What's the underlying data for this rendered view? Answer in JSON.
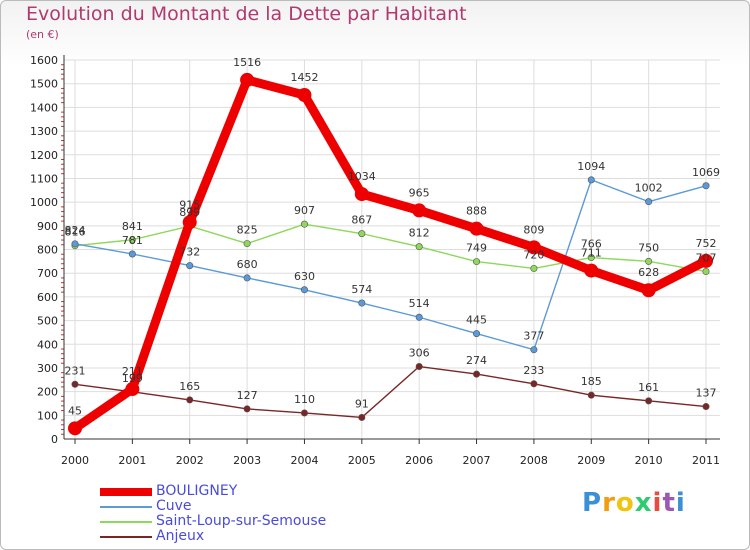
{
  "title": "Evolution du Montant de la Dette par Habitant",
  "subtitle": "(en €)",
  "logo": {
    "letters": [
      "P",
      "r",
      "o",
      "x",
      "i",
      "t",
      "i"
    ],
    "colors": [
      "#3b8fd6",
      "#f39c12",
      "#f1c40f",
      "#2ecc71",
      "#e74c3c",
      "#9b59b6",
      "#3b8fd6"
    ]
  },
  "chart_data": {
    "type": "line",
    "x": [
      "2000",
      "2001",
      "2002",
      "2003",
      "2004",
      "2005",
      "2006",
      "2007",
      "2008",
      "2009",
      "2010",
      "2011"
    ],
    "ylim": [
      0,
      1600
    ],
    "yticks": [
      "0",
      "100",
      "200",
      "300",
      "400",
      "500",
      "600",
      "700",
      "800",
      "900",
      "1000",
      "1100",
      "1200",
      "1300",
      "1400",
      "1500",
      "1600"
    ],
    "grid": true,
    "legend_position": "bottom-left",
    "series": [
      {
        "name": "BOULIGNEY",
        "color": "#ee0000",
        "values": [
          45,
          211,
          915,
          1516,
          1452,
          1034,
          965,
          888,
          809,
          711,
          628,
          752
        ],
        "labels": [
          "45",
          "211",
          "915",
          "1516",
          "1452",
          "1034",
          "965",
          "888",
          "809",
          "711",
          "628",
          "752"
        ]
      },
      {
        "name": "Cuve",
        "color": "#5a9ad8",
        "values": [
          824,
          781,
          732,
          680,
          630,
          574,
          514,
          445,
          377,
          1094,
          1002,
          1069
        ],
        "labels": [
          "824",
          "781",
          "732",
          "680",
          "630",
          "574",
          "514",
          "445",
          "377",
          "1094",
          "1002",
          "1069"
        ]
      },
      {
        "name": "Saint-Loup-sur-Semouse",
        "color": "#8ed85a",
        "values": [
          816,
          841,
          899,
          825,
          907,
          867,
          812,
          749,
          720,
          766,
          750,
          707
        ],
        "labels": [
          "816",
          "841",
          "899",
          "825",
          "907",
          "867",
          "812",
          "749",
          "720",
          "766",
          "750",
          "707"
        ]
      },
      {
        "name": "Anjeux",
        "color": "#7a2626",
        "values": [
          231,
          199,
          165,
          127,
          110,
          91,
          306,
          274,
          233,
          185,
          161,
          137
        ],
        "labels": [
          "231",
          "199",
          "165",
          "127",
          "110",
          "91",
          "306",
          "274",
          "233",
          "185",
          "161",
          "137"
        ]
      }
    ]
  }
}
